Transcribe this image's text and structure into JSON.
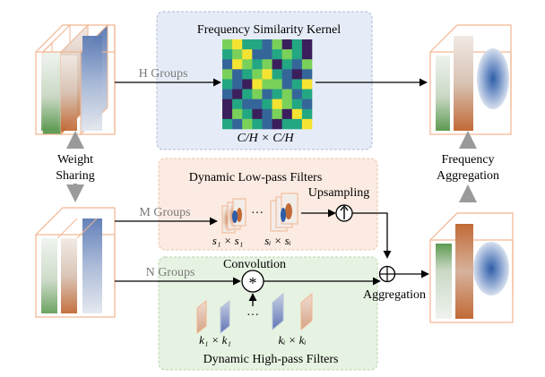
{
  "labels": {
    "fsk_title": "Frequency Similarity Kernel",
    "fsk_formula": "C/H × C/H",
    "h_groups": "H Groups",
    "m_groups": "M Groups",
    "n_groups": "N Groups",
    "weight": "Weight",
    "sharing": "Sharing",
    "lp_title": "Dynamic Low-pass Filters",
    "upsampling": "Upsampling",
    "convolution": "Convolution",
    "aggregation": "Aggregation",
    "freq_agg_1": "Frequency",
    "freq_agg_2": "Aggregation",
    "hp_title": "Dynamic High-pass Filters",
    "s1": "s₁ × s₁",
    "si": "sᵢ × sᵢ",
    "k1": "k₁ × k₁",
    "ki": "kᵢ × kᵢ",
    "ellipsis": "···",
    "conv_symbol": "*"
  },
  "colors": {
    "blue_panel": "#e6ecf7",
    "orange_panel": "#fcebe2",
    "green_panel": "#e7f3e2",
    "frame_orange": "#f2b48f",
    "arrow_gray": "#9a9a9a",
    "text_gray": "#7a7a7a"
  },
  "heatmap": [
    [
      3,
      4,
      2,
      2,
      1,
      3,
      0,
      2,
      0
    ],
    [
      2,
      3,
      4,
      1,
      1,
      2,
      3,
      2,
      0
    ],
    [
      1,
      4,
      3,
      2,
      3,
      0,
      2,
      1,
      3
    ],
    [
      3,
      1,
      2,
      3,
      4,
      2,
      1,
      0,
      1
    ],
    [
      2,
      1,
      0,
      4,
      3,
      3,
      1,
      2,
      4
    ],
    [
      1,
      0,
      2,
      3,
      1,
      2,
      3,
      1,
      2
    ],
    [
      0,
      2,
      1,
      1,
      2,
      4,
      3,
      2,
      1
    ],
    [
      0,
      3,
      2,
      0,
      1,
      3,
      0,
      4,
      2
    ],
    [
      2,
      1,
      3,
      2,
      1,
      0,
      2,
      2,
      4
    ]
  ],
  "heatmap_palette": [
    "#3b1f5c",
    "#35669a",
    "#23a783",
    "#7ad15a",
    "#f5e332"
  ]
}
